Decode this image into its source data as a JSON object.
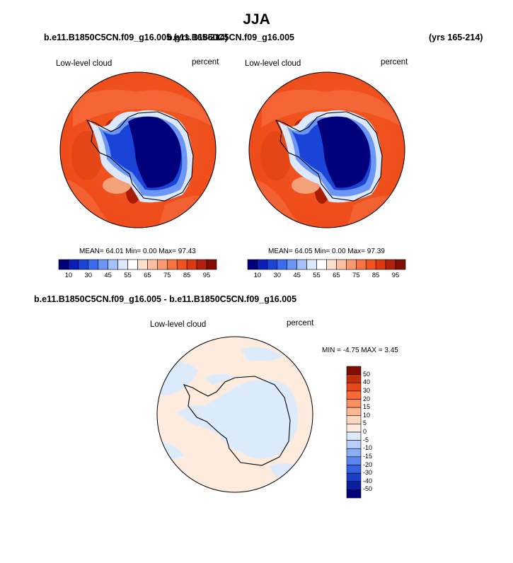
{
  "title": "JJA",
  "left_panel": {
    "header": "b.e11.B1850C5CN.f09_g16.005 (yrs 165-214)",
    "label_left": "Low-level cloud",
    "label_right": "percent",
    "stats": "MEAN= 64.01  Min=  0.00  Max= 97.43"
  },
  "right_panel": {
    "header": "b.e11.B1850C5CN.f09_g16.005",
    "years": "(yrs 165-214)",
    "label_left": "Low-level cloud",
    "label_right": "percent",
    "stats": "MEAN= 64.05  Min=  0.00  Max= 97.39"
  },
  "diff_panel": {
    "header": "b.e11.B1850C5CN.f09_g16.005 - b.e11.B1850C5CN.f09_g16.005",
    "label_left": "Low-level cloud",
    "label_right": "percent",
    "stats": "MIN =  -4.75 MAX =   3.45"
  },
  "colorbar_main": {
    "ticks": [
      "10",
      "30",
      "45",
      "55",
      "65",
      "75",
      "85",
      "95"
    ],
    "colors": [
      "#00007a",
      "#0a1fb8",
      "#1a44d8",
      "#3a6cf0",
      "#6b96f6",
      "#a6c2fa",
      "#dbe8fd",
      "#ffffff",
      "#fde0cc",
      "#fcc0a0",
      "#fa9a70",
      "#f77440",
      "#f2521c",
      "#dc3a0e",
      "#b32208",
      "#820e02"
    ]
  },
  "colorbar_diff": {
    "ticks": [
      "50",
      "40",
      "30",
      "20",
      "15",
      "10",
      "5",
      "0",
      "-5",
      "-10",
      "-15",
      "-20",
      "-30",
      "-40",
      "-50"
    ],
    "colors": [
      "#820e02",
      "#c02e0c",
      "#e84818",
      "#f76a34",
      "#fa9060",
      "#fcb692",
      "#fdd7c0",
      "#fdebdd",
      "#dcebfc",
      "#b6cef8",
      "#8aaef4",
      "#5c88ee",
      "#3462e0",
      "#1a3fc6",
      "#0a1fa0",
      "#00007a"
    ]
  }
}
